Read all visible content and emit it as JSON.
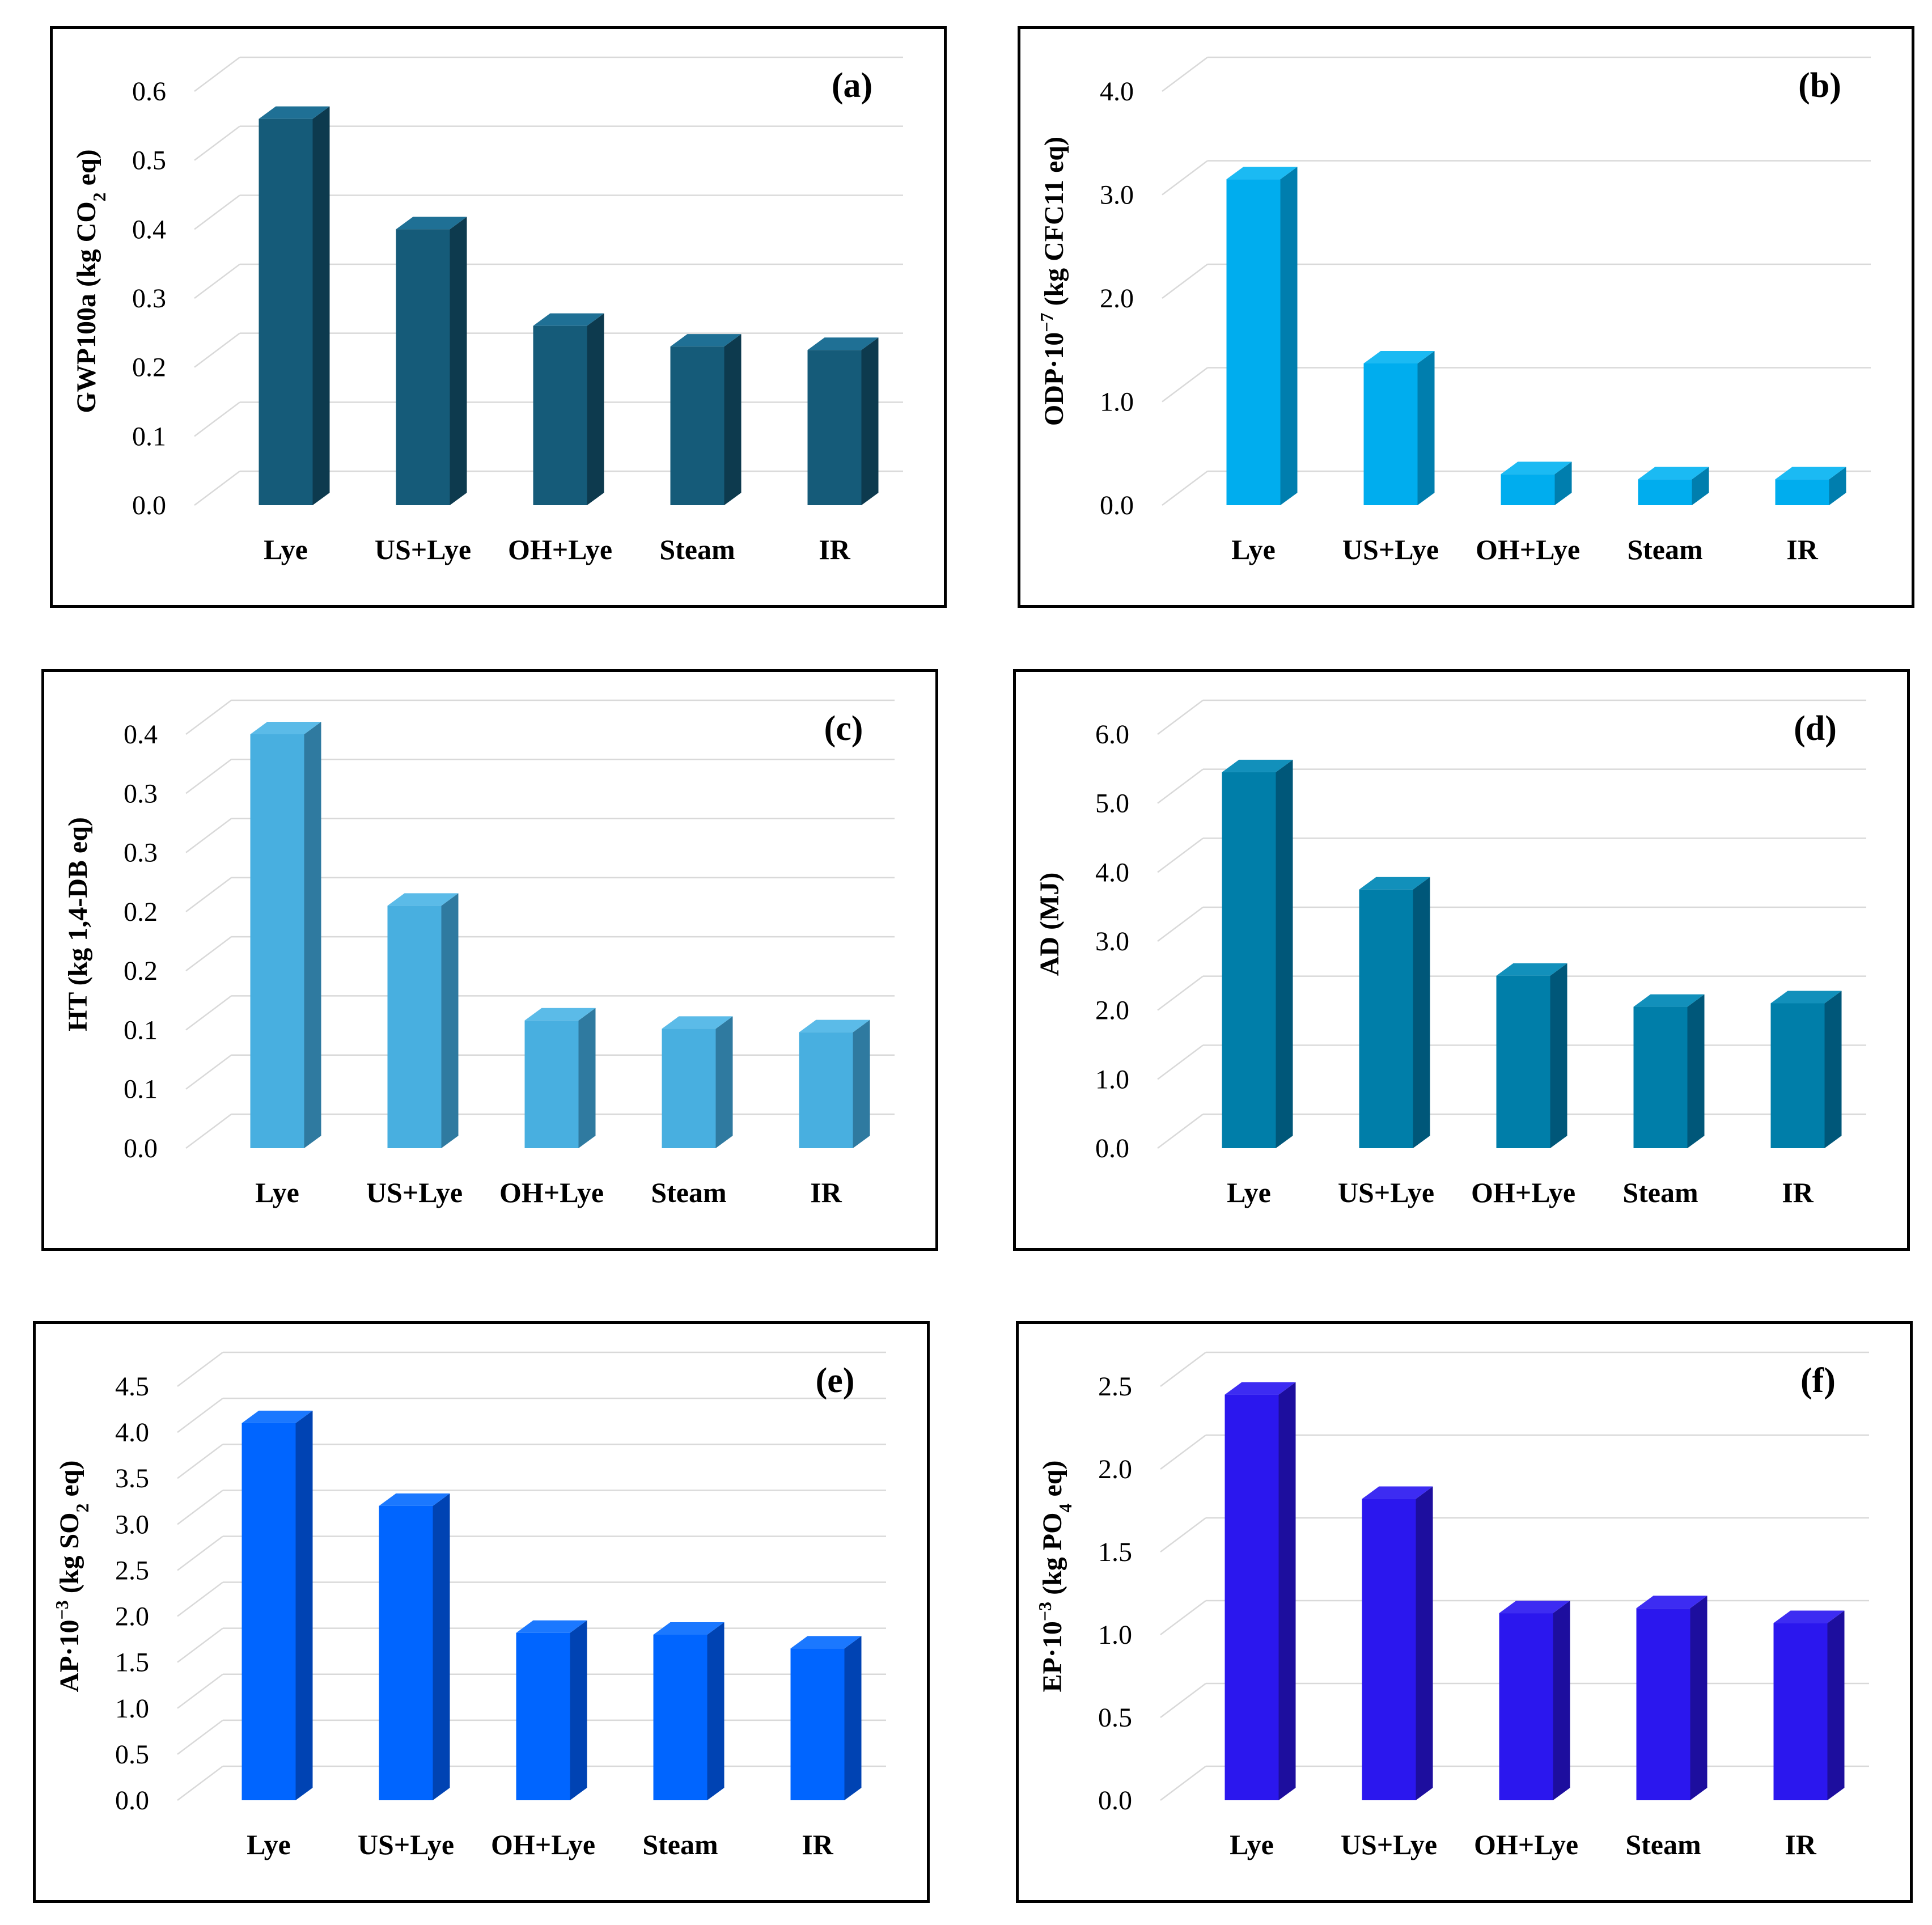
{
  "chart_data": [
    {
      "type": "bar",
      "panel_label": "(a)",
      "categories": [
        "Lye",
        "US+Lye",
        "OH+Lye",
        "Steam",
        "IR"
      ],
      "values": [
        0.56,
        0.4,
        0.26,
        0.23,
        0.225
      ],
      "yticks": [
        "0.0",
        "0.1",
        "0.2",
        "0.3",
        "0.4",
        "0.5",
        "0.6"
      ],
      "ylim": [
        0,
        0.6
      ],
      "ylabel_main": "GWP100a (kg CO",
      "ylabel_sub": "2",
      "ylabel_tail": " eq)",
      "colors": {
        "front": "#155b79",
        "side": "#0d3a4e",
        "top": "#1f7095"
      }
    },
    {
      "type": "bar",
      "panel_label": "(b)",
      "categories": [
        "Lye",
        "US+Lye",
        "OH+Lye",
        "Steam",
        "IR"
      ],
      "values": [
        3.15,
        1.37,
        0.3,
        0.25,
        0.25
      ],
      "yticks": [
        "0.0",
        "1.0",
        "2.0",
        "3.0",
        "4.0"
      ],
      "ylim": [
        0,
        4.0
      ],
      "ylabel_main": "ODP·10",
      "ylabel_sup": "−7",
      "ylabel_tail": " (kg CFC11 eq)",
      "colors": {
        "front": "#00adee",
        "side": "#007eae",
        "top": "#1bbaf3"
      }
    },
    {
      "type": "bar",
      "panel_label": "(c)",
      "categories": [
        "Lye",
        "US+Lye",
        "OH+Lye",
        "Steam",
        "IR"
      ],
      "values": [
        0.35,
        0.205,
        0.108,
        0.101,
        0.098
      ],
      "yticks": [
        "0.0",
        "0.1",
        "0.1",
        "0.2",
        "0.2",
        "0.3",
        "0.3",
        "0.4"
      ],
      "ylim": [
        0,
        0.35
      ],
      "ylabel_main": "HT (kg 1,4-DB eq)",
      "colors": {
        "front": "#48afe0",
        "side": "#2f7aa0",
        "top": "#5bbbe8"
      }
    },
    {
      "type": "bar",
      "panel_label": "(d)",
      "categories": [
        "Lye",
        "US+Lye",
        "OH+Lye",
        "Steam",
        "IR"
      ],
      "values": [
        5.45,
        3.75,
        2.5,
        2.05,
        2.1
      ],
      "yticks": [
        "0.0",
        "1.0",
        "2.0",
        "3.0",
        "4.0",
        "5.0",
        "6.0"
      ],
      "ylim": [
        0,
        6.0
      ],
      "ylabel_main": "AD (MJ)",
      "colors": {
        "front": "#007ea9",
        "side": "#005779",
        "top": "#1290bb"
      }
    },
    {
      "type": "bar",
      "panel_label": "(e)",
      "categories": [
        "Lye",
        "US+Lye",
        "OH+Lye",
        "Steam",
        "IR"
      ],
      "values": [
        4.1,
        3.2,
        1.82,
        1.8,
        1.65
      ],
      "yticks": [
        "0.0",
        "0.5",
        "1.0",
        "1.5",
        "2.0",
        "2.5",
        "3.0",
        "3.5",
        "4.0",
        "4.5"
      ],
      "ylim": [
        0,
        4.5
      ],
      "ylabel_main": "AP·10",
      "ylabel_sup": "−3",
      "ylabel_tail": " (kg SO",
      "ylabel_sub": "2",
      "ylabel_tail2": " eq)",
      "colors": {
        "front": "#0065ff",
        "side": "#0043b3",
        "top": "#1b78ff"
      }
    },
    {
      "type": "bar",
      "panel_label": "(f)",
      "categories": [
        "Lye",
        "US+Lye",
        "OH+Lye",
        "Steam",
        "IR"
      ],
      "values": [
        2.45,
        1.82,
        1.13,
        1.16,
        1.07
      ],
      "yticks": [
        "0.0",
        "0.5",
        "1.0",
        "1.5",
        "2.0",
        "2.5"
      ],
      "ylim": [
        0,
        2.5
      ],
      "ylabel_main": "EP·10",
      "ylabel_sup": "−3",
      "ylabel_tail": " (kg PO",
      "ylabel_sub": "4",
      "ylabel_tail2": " eq)",
      "colors": {
        "front": "#2b17ee",
        "side": "#1d0e9e",
        "top": "#3d2cf2"
      }
    }
  ]
}
